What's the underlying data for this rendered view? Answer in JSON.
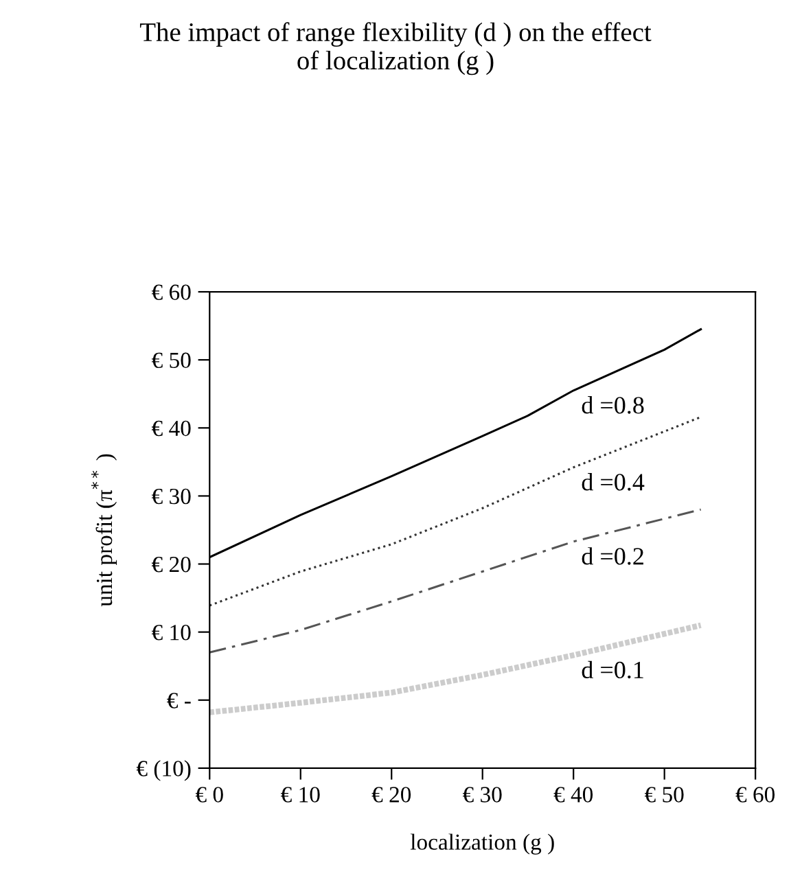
{
  "chart_data": {
    "type": "line",
    "title": "The impact of range flexibility (d ) on the effect\nof localization (g )",
    "xlabel": "localization (g )",
    "ylabel": "unit profit (π$^{**}$ )",
    "xlim": [
      0,
      60
    ],
    "ylim": [
      -10,
      60
    ],
    "xticks": [
      {
        "value": 0,
        "label": "€ 0"
      },
      {
        "value": 10,
        "label": "€ 10"
      },
      {
        "value": 20,
        "label": "€ 20"
      },
      {
        "value": 30,
        "label": "€ 30"
      },
      {
        "value": 40,
        "label": "€ 40"
      },
      {
        "value": 50,
        "label": "€ 50"
      },
      {
        "value": 60,
        "label": "€ 60"
      }
    ],
    "yticks": [
      {
        "value": -10,
        "label": "€ (10)"
      },
      {
        "value": 0,
        "label": "€ -"
      },
      {
        "value": 10,
        "label": "€ 10"
      },
      {
        "value": 20,
        "label": "€ 20"
      },
      {
        "value": 30,
        "label": "€ 30"
      },
      {
        "value": 40,
        "label": "€ 40"
      },
      {
        "value": 50,
        "label": "€ 50"
      },
      {
        "value": 60,
        "label": "€ 60"
      }
    ],
    "grid": false,
    "legend": false,
    "marker": "none",
    "x": [
      0,
      10,
      20,
      30,
      35,
      40,
      50,
      54
    ],
    "series": [
      {
        "name": "d =0.8",
        "color": "#000000",
        "line_style": "solid",
        "values": [
          21.0,
          27.2,
          32.9,
          38.8,
          41.8,
          45.5,
          51.5,
          54.5
        ]
      },
      {
        "name": "d =0.4",
        "color": "#333333",
        "line_style": "dotted",
        "values": [
          13.9,
          18.9,
          22.9,
          28.2,
          null,
          34.2,
          null,
          41.6
        ]
      },
      {
        "name": "d =0.2",
        "color": "#555555",
        "line_style": "dashed",
        "values": [
          7.0,
          10.3,
          14.5,
          18.9,
          null,
          23.3,
          null,
          28.0
        ]
      },
      {
        "name": "d =0.1",
        "color": "#cccccc",
        "line_style": "dotted",
        "values": [
          -1.8,
          -0.4,
          1.1,
          3.7,
          null,
          6.6,
          null,
          11.0
        ]
      }
    ]
  }
}
